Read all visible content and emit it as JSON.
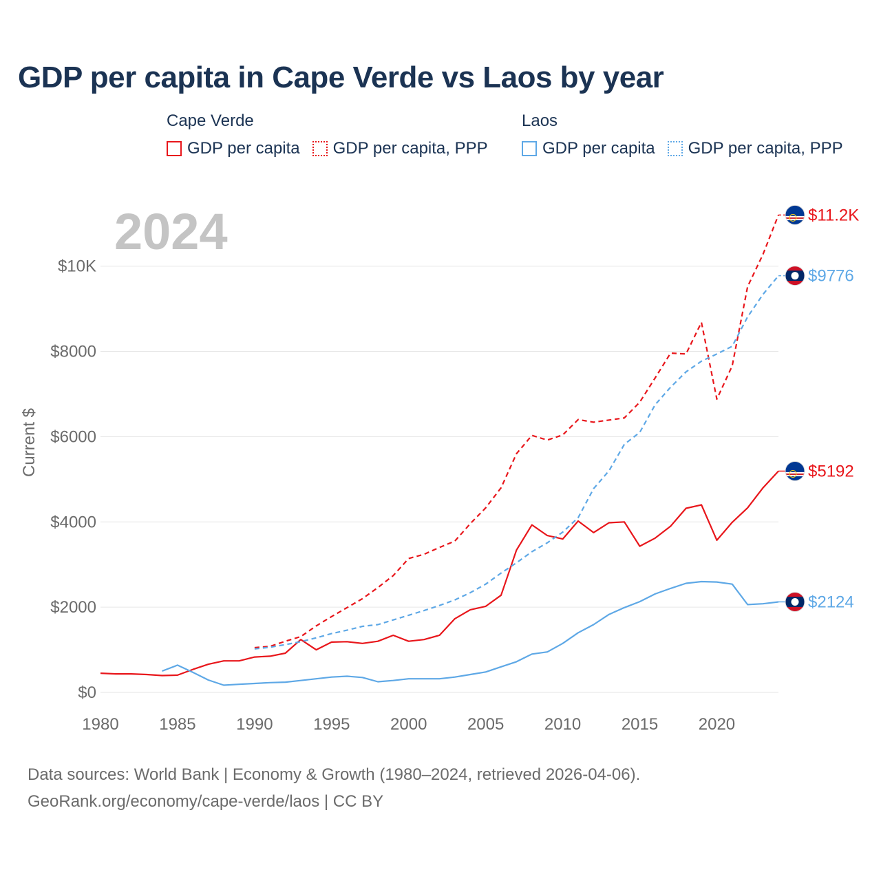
{
  "chart_data": {
    "type": "line",
    "title": "GDP per capita in Cape Verde vs Laos by year",
    "year_watermark": "2024",
    "ylabel": "Current $",
    "xlabel": "",
    "xlim": [
      1980,
      2024
    ],
    "ylim": [
      0,
      11400
    ],
    "x_ticks": [
      {
        "value": 1980,
        "label": "1980"
      },
      {
        "value": 1985,
        "label": "1985"
      },
      {
        "value": 1990,
        "label": "1990"
      },
      {
        "value": 1995,
        "label": "1995"
      },
      {
        "value": 2000,
        "label": "2000"
      },
      {
        "value": 2005,
        "label": "2005"
      },
      {
        "value": 2010,
        "label": "2010"
      },
      {
        "value": 2015,
        "label": "2015"
      },
      {
        "value": 2020,
        "label": "2020"
      }
    ],
    "y_ticks": [
      {
        "value": 0,
        "label": "$0"
      },
      {
        "value": 2000,
        "label": "$2000"
      },
      {
        "value": 4000,
        "label": "$4000"
      },
      {
        "value": 6000,
        "label": "$6000"
      },
      {
        "value": 8000,
        "label": "$8000"
      },
      {
        "value": 10000,
        "label": "$10K"
      }
    ],
    "grid": true,
    "legend": {
      "position": "top",
      "groups": [
        {
          "name": "Cape Verde",
          "items": [
            {
              "label": "GDP per capita",
              "color": "#e8161b",
              "style": "solid"
            },
            {
              "label": "GDP per capita, PPP",
              "color": "#e8161b",
              "style": "dotted"
            }
          ]
        },
        {
          "name": "Laos",
          "items": [
            {
              "label": "GDP per capita",
              "color": "#5ea8e6",
              "style": "solid"
            },
            {
              "label": "GDP per capita, PPP",
              "color": "#5ea8e6",
              "style": "dotted"
            }
          ]
        }
      ]
    },
    "series": [
      {
        "name": "Cape Verde GDP per capita",
        "country": "Cape Verde",
        "flag": "cape-verde",
        "color": "#e8161b",
        "dash": false,
        "end_label": "$5192",
        "x": [
          1980,
          1981,
          1982,
          1983,
          1984,
          1985,
          1986,
          1987,
          1988,
          1989,
          1990,
          1991,
          1992,
          1993,
          1994,
          1995,
          1996,
          1997,
          1998,
          1999,
          2000,
          2001,
          2002,
          2003,
          2004,
          2005,
          2006,
          2007,
          2008,
          2009,
          2010,
          2011,
          2012,
          2013,
          2014,
          2015,
          2016,
          2017,
          2018,
          2019,
          2020,
          2021,
          2022,
          2023,
          2024
        ],
        "y": [
          450,
          435,
          435,
          420,
          395,
          405,
          540,
          660,
          740,
          740,
          830,
          850,
          920,
          1240,
          1000,
          1180,
          1190,
          1150,
          1200,
          1340,
          1200,
          1240,
          1340,
          1730,
          1940,
          2020,
          2280,
          3340,
          3930,
          3680,
          3600,
          4020,
          3750,
          3980,
          4000,
          3430,
          3620,
          3900,
          4320,
          4400,
          3570,
          3990,
          4330,
          4800,
          5192
        ]
      },
      {
        "name": "Cape Verde GDP per capita, PPP",
        "country": "Cape Verde",
        "flag": "cape-verde",
        "color": "#e8161b",
        "dash": true,
        "end_label": "$11.2K",
        "x": [
          1990,
          1991,
          1992,
          1993,
          1994,
          1995,
          1996,
          1997,
          1998,
          1999,
          2000,
          2001,
          2002,
          2003,
          2004,
          2005,
          2006,
          2007,
          2008,
          2009,
          2010,
          2011,
          2012,
          2013,
          2014,
          2015,
          2016,
          2017,
          2018,
          2019,
          2020,
          2021,
          2022,
          2023,
          2024
        ],
        "y": [
          1050,
          1080,
          1200,
          1310,
          1560,
          1780,
          1990,
          2200,
          2460,
          2740,
          3140,
          3240,
          3400,
          3550,
          3960,
          4330,
          4800,
          5600,
          6030,
          5920,
          6040,
          6400,
          6340,
          6390,
          6440,
          6810,
          7380,
          7960,
          7940,
          8680,
          6880,
          7660,
          9520,
          10280,
          11200
        ]
      },
      {
        "name": "Laos GDP per capita",
        "country": "Laos",
        "flag": "laos",
        "color": "#5ea8e6",
        "dash": false,
        "end_label": "$2124",
        "x": [
          1984,
          1985,
          1986,
          1987,
          1988,
          1989,
          1990,
          1991,
          1992,
          1993,
          1994,
          1995,
          1996,
          1997,
          1998,
          1999,
          2000,
          2001,
          2002,
          2003,
          2004,
          2005,
          2006,
          2007,
          2008,
          2009,
          2010,
          2011,
          2012,
          2013,
          2014,
          2015,
          2016,
          2017,
          2018,
          2019,
          2020,
          2021,
          2022,
          2023,
          2024
        ],
        "y": [
          500,
          640,
          470,
          290,
          170,
          190,
          210,
          230,
          240,
          280,
          320,
          360,
          380,
          350,
          250,
          280,
          320,
          320,
          320,
          360,
          420,
          480,
          600,
          720,
          900,
          950,
          1150,
          1400,
          1590,
          1830,
          1990,
          2130,
          2310,
          2440,
          2560,
          2600,
          2590,
          2540,
          2060,
          2080,
          2124
        ]
      },
      {
        "name": "Laos GDP per capita, PPP",
        "country": "Laos",
        "flag": "laos",
        "color": "#5ea8e6",
        "dash": true,
        "end_label": "$9776",
        "x": [
          1990,
          1991,
          1992,
          1993,
          1994,
          1995,
          1996,
          1997,
          1998,
          1999,
          2000,
          2001,
          2002,
          2003,
          2004,
          2005,
          2006,
          2007,
          2008,
          2009,
          2010,
          2011,
          2012,
          2013,
          2014,
          2015,
          2016,
          2017,
          2018,
          2019,
          2020,
          2021,
          2022,
          2023,
          2024
        ],
        "y": [
          1020,
          1060,
          1120,
          1190,
          1280,
          1380,
          1460,
          1550,
          1590,
          1700,
          1810,
          1920,
          2040,
          2170,
          2340,
          2540,
          2800,
          3040,
          3300,
          3510,
          3760,
          4100,
          4780,
          5200,
          5820,
          6100,
          6750,
          7160,
          7520,
          7770,
          7940,
          8120,
          8810,
          9340,
          9776
        ]
      }
    ]
  },
  "sources": {
    "line1": "Data sources: World Bank | Economy & Growth (1980–2024, retrieved 2026-04-06).",
    "line2": "GeoRank.org/economy/cape-verde/laos | CC BY"
  }
}
